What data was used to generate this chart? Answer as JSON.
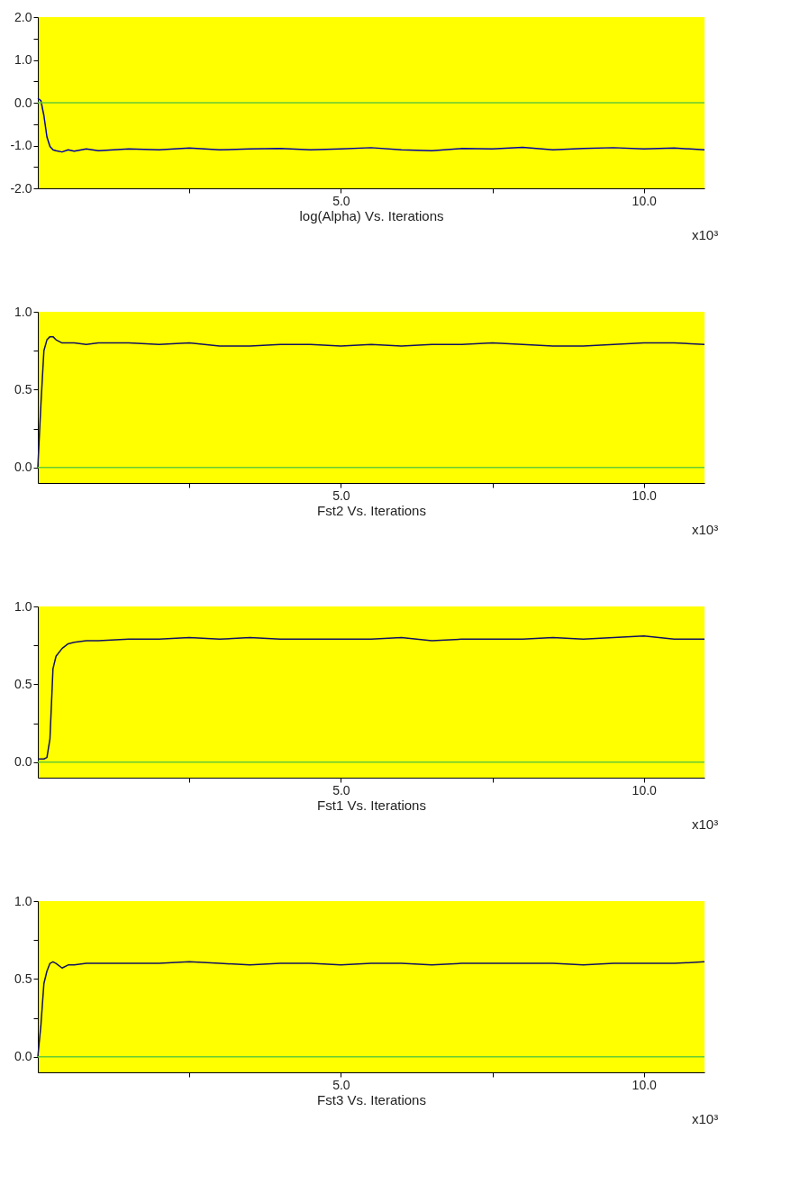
{
  "chart_data": [
    {
      "type": "line",
      "xlabel": "log(Alpha) Vs. Iterations",
      "annotations": [
        "x10³"
      ],
      "x": [
        0,
        0.05,
        0.1,
        0.15,
        0.2,
        0.25,
        0.3,
        0.4,
        0.5,
        0.6,
        0.8,
        1.0,
        1.5,
        2.0,
        2.5,
        3.0,
        3.5,
        4.0,
        4.5,
        5.0,
        5.5,
        6.0,
        6.5,
        7.0,
        7.5,
        8.0,
        8.5,
        9.0,
        9.5,
        10.0,
        10.5,
        11.0
      ],
      "series": [
        {
          "color": "#0000a0",
          "values": [
            0.1,
            0.05,
            -0.3,
            -0.8,
            -1.02,
            -1.1,
            -1.12,
            -1.15,
            -1.1,
            -1.13,
            -1.08,
            -1.12,
            -1.08,
            -1.1,
            -1.06,
            -1.1,
            -1.08,
            -1.07,
            -1.1,
            -1.08,
            -1.05,
            -1.1,
            -1.12,
            -1.07,
            -1.08,
            -1.04,
            -1.1,
            -1.07,
            -1.05,
            -1.08,
            -1.06,
            -1.1
          ]
        }
      ],
      "xlim": [
        0,
        11.0
      ],
      "xticks": [
        {
          "value": 2.5,
          "label": null
        },
        {
          "value": 5,
          "label": "5.0"
        },
        {
          "value": 7.5,
          "label": null
        },
        {
          "value": 10,
          "label": "10.0"
        }
      ],
      "ylim": [
        -2.0,
        2.0
      ],
      "yticks": [
        {
          "value": -2,
          "label": "-2.0"
        },
        {
          "value": -1.5,
          "label": null
        },
        {
          "value": -1,
          "label": "-1.0"
        },
        {
          "value": -0.5,
          "label": null
        },
        {
          "value": 0,
          "label": "0.0"
        },
        {
          "value": 0.5,
          "label": null
        },
        {
          "value": 1,
          "label": "1.0"
        },
        {
          "value": 1.5,
          "label": null
        },
        {
          "value": 2,
          "label": "2.0"
        }
      ],
      "ref_lines": [
        {
          "axis": "y",
          "value": 0,
          "color": "#66cc33"
        }
      ],
      "grid": false,
      "line_style": "solid"
    },
    {
      "type": "line",
      "xlabel": "Fst2 Vs. Iterations",
      "annotations": [
        "x10³"
      ],
      "x": [
        0,
        0.05,
        0.1,
        0.15,
        0.2,
        0.25,
        0.3,
        0.4,
        0.5,
        0.6,
        0.8,
        1.0,
        1.5,
        2.0,
        2.5,
        3.0,
        3.5,
        4.0,
        4.5,
        5.0,
        5.5,
        6.0,
        6.5,
        7.0,
        7.5,
        8.0,
        8.5,
        9.0,
        9.5,
        10.0,
        10.5,
        11.0
      ],
      "series": [
        {
          "color": "#101060",
          "values": [
            0,
            0.4,
            0.75,
            0.82,
            0.84,
            0.84,
            0.82,
            0.8,
            0.8,
            0.8,
            0.79,
            0.8,
            0.8,
            0.79,
            0.8,
            0.78,
            0.78,
            0.79,
            0.79,
            0.78,
            0.79,
            0.78,
            0.79,
            0.79,
            0.8,
            0.79,
            0.78,
            0.78,
            0.79,
            0.8,
            0.8,
            0.79
          ]
        }
      ],
      "xlim": [
        0,
        11.0
      ],
      "xticks": [
        {
          "value": 2.5,
          "label": null
        },
        {
          "value": 5,
          "label": "5.0"
        },
        {
          "value": 7.5,
          "label": null
        },
        {
          "value": 10,
          "label": "10.0"
        }
      ],
      "ylim": [
        -0.1,
        1.0
      ],
      "yticks": [
        {
          "value": 0,
          "label": "0.0"
        },
        {
          "value": 0.25,
          "label": null
        },
        {
          "value": 0.5,
          "label": "0.5"
        },
        {
          "value": 0.75,
          "label": null
        },
        {
          "value": 1,
          "label": "1.0"
        }
      ],
      "ref_lines": [
        {
          "axis": "y",
          "value": 0,
          "color": "#66cc33"
        }
      ],
      "grid": false,
      "line_style": "solid"
    },
    {
      "type": "line",
      "xlabel": "Fst1 Vs. Iterations",
      "annotations": [
        "x10³"
      ],
      "x": [
        0,
        0.05,
        0.1,
        0.15,
        0.2,
        0.25,
        0.3,
        0.4,
        0.5,
        0.6,
        0.8,
        1.0,
        1.5,
        2.0,
        2.5,
        3.0,
        3.5,
        4.0,
        4.5,
        5.0,
        5.5,
        6.0,
        6.5,
        7.0,
        7.5,
        8.0,
        8.5,
        9.0,
        9.5,
        10.0,
        10.5,
        11.0
      ],
      "series": [
        {
          "color": "#101060",
          "values": [
            0.02,
            0.02,
            0.02,
            0.03,
            0.15,
            0.6,
            0.68,
            0.73,
            0.76,
            0.77,
            0.78,
            0.78,
            0.79,
            0.79,
            0.8,
            0.79,
            0.8,
            0.79,
            0.79,
            0.79,
            0.79,
            0.8,
            0.78,
            0.79,
            0.79,
            0.79,
            0.8,
            0.79,
            0.8,
            0.81,
            0.79,
            0.79
          ]
        }
      ],
      "xlim": [
        0,
        11.0
      ],
      "xticks": [
        {
          "value": 2.5,
          "label": null
        },
        {
          "value": 5,
          "label": "5.0"
        },
        {
          "value": 7.5,
          "label": null
        },
        {
          "value": 10,
          "label": "10.0"
        }
      ],
      "ylim": [
        -0.1,
        1.0
      ],
      "yticks": [
        {
          "value": 0,
          "label": "0.0"
        },
        {
          "value": 0.25,
          "label": null
        },
        {
          "value": 0.5,
          "label": "0.5"
        },
        {
          "value": 0.75,
          "label": null
        },
        {
          "value": 1,
          "label": "1.0"
        }
      ],
      "ref_lines": [
        {
          "axis": "y",
          "value": 0,
          "color": "#66cc33"
        }
      ],
      "grid": false,
      "line_style": "solid"
    },
    {
      "type": "line",
      "xlabel": "Fst3 Vs. Iterations",
      "annotations": [
        "x10³"
      ],
      "x": [
        0,
        0.05,
        0.1,
        0.15,
        0.2,
        0.25,
        0.3,
        0.4,
        0.5,
        0.6,
        0.8,
        1.0,
        1.5,
        2.0,
        2.5,
        3.0,
        3.5,
        4.0,
        4.5,
        5.0,
        5.5,
        6.0,
        6.5,
        7.0,
        7.5,
        8.0,
        8.5,
        9.0,
        9.5,
        10.0,
        10.5,
        11.0
      ],
      "series": [
        {
          "color": "#101060",
          "values": [
            0,
            0.2,
            0.47,
            0.55,
            0.6,
            0.61,
            0.6,
            0.57,
            0.59,
            0.59,
            0.6,
            0.6,
            0.6,
            0.6,
            0.61,
            0.6,
            0.59,
            0.6,
            0.6,
            0.59,
            0.6,
            0.6,
            0.59,
            0.6,
            0.6,
            0.6,
            0.6,
            0.59,
            0.6,
            0.6,
            0.6,
            0.61
          ]
        }
      ],
      "xlim": [
        0,
        11.0
      ],
      "xticks": [
        {
          "value": 2.5,
          "label": null
        },
        {
          "value": 5,
          "label": "5.0"
        },
        {
          "value": 7.5,
          "label": null
        },
        {
          "value": 10,
          "label": "10.0"
        }
      ],
      "ylim": [
        -0.1,
        1.0
      ],
      "yticks": [
        {
          "value": 0,
          "label": "0.0"
        },
        {
          "value": 0.25,
          "label": null
        },
        {
          "value": 0.5,
          "label": "0.5"
        },
        {
          "value": 0.75,
          "label": null
        },
        {
          "value": 1,
          "label": "1.0"
        }
      ],
      "ref_lines": [
        {
          "axis": "y",
          "value": 0,
          "color": "#66cc33"
        }
      ],
      "grid": false,
      "line_style": "solid"
    }
  ]
}
